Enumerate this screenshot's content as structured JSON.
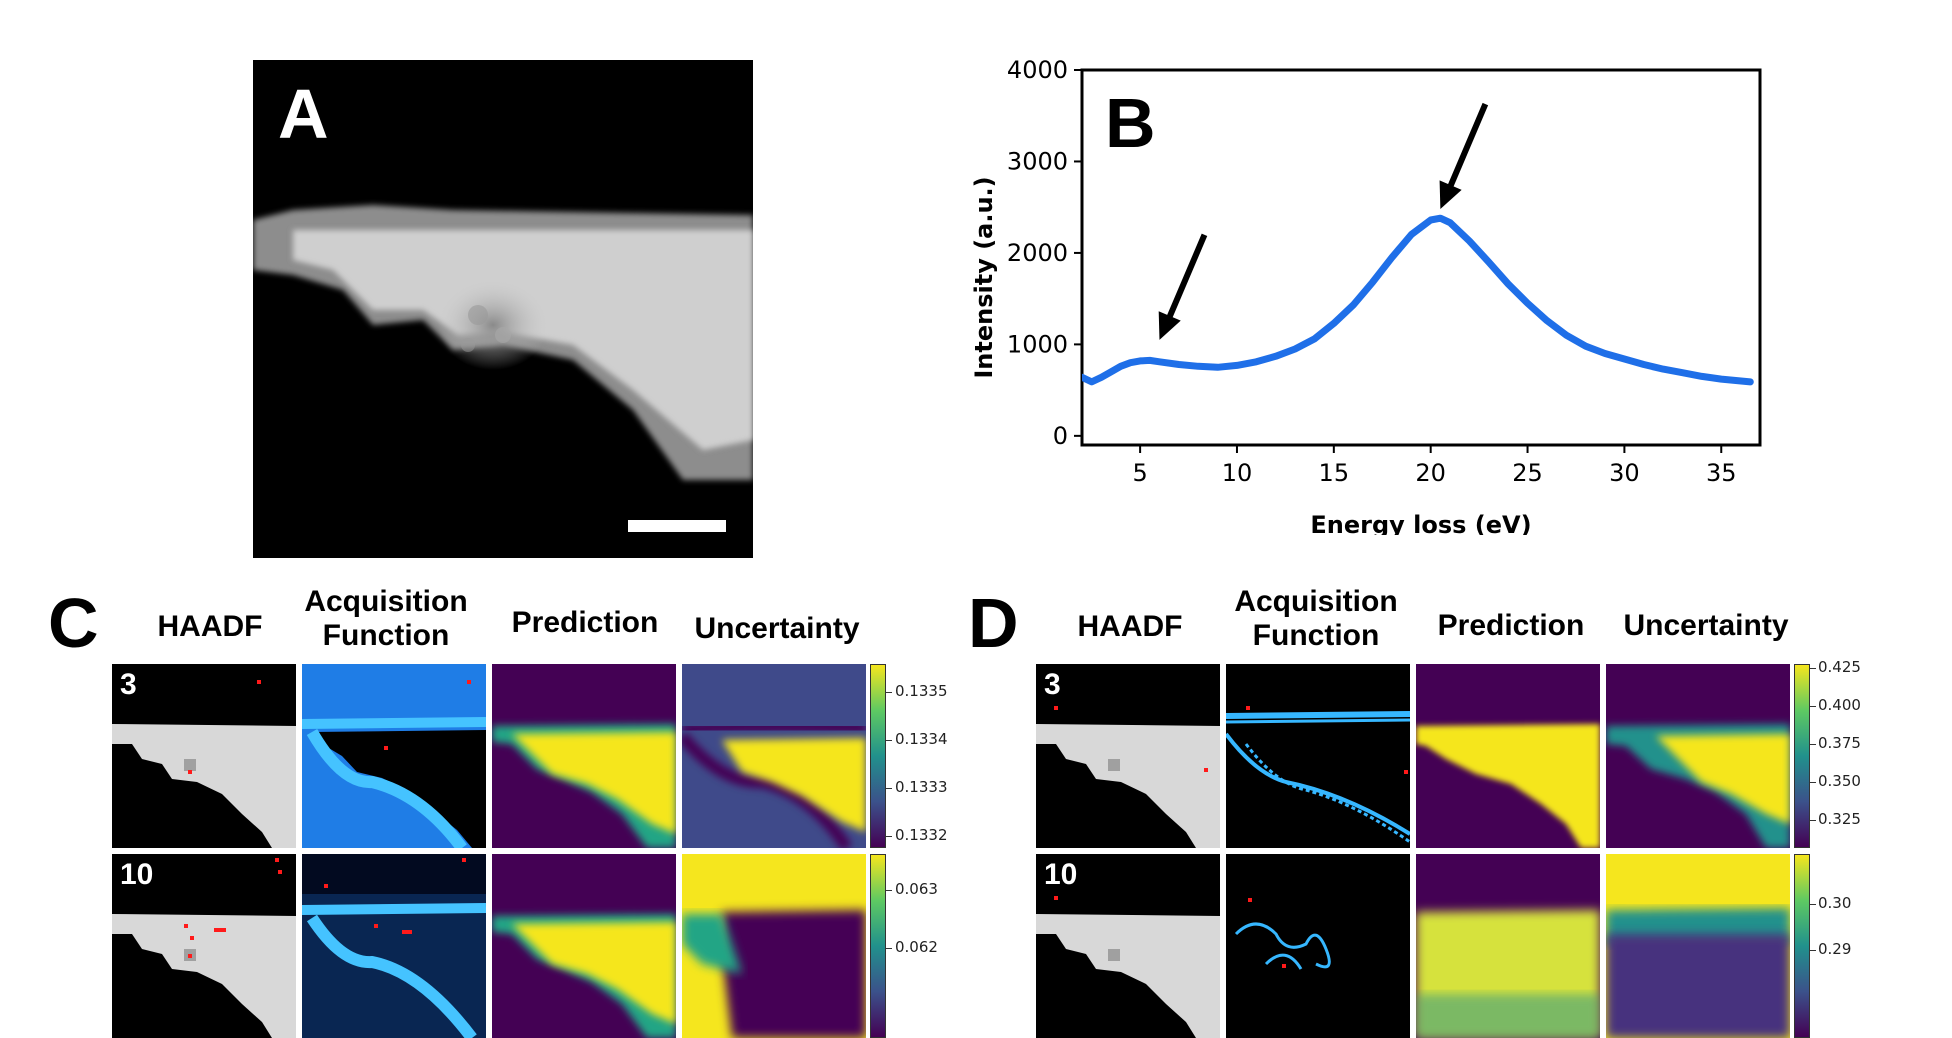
{
  "panel_a": {
    "letter": "A"
  },
  "panel_b": {
    "letter": "B"
  },
  "chart_data": {
    "type": "line",
    "title": "",
    "xlabel": "Energy loss (eV)",
    "ylabel": "Intensity (a.u.)",
    "xlim": [
      2,
      37
    ],
    "ylim": [
      -100,
      4000
    ],
    "xticks": [
      5,
      10,
      15,
      20,
      25,
      30,
      35
    ],
    "yticks": [
      0,
      1000,
      2000,
      3000,
      4000
    ],
    "grid": false,
    "series_color": "#1f6fe8",
    "x": [
      2,
      2.5,
      3,
      3.5,
      4,
      4.5,
      5,
      5.5,
      6,
      7,
      8,
      9,
      10,
      11,
      12,
      13,
      14,
      15,
      16,
      17,
      18,
      19,
      20,
      20.5,
      21,
      22,
      23,
      24,
      25,
      26,
      27,
      28,
      29,
      30,
      31,
      32,
      33,
      34,
      35,
      36.5
    ],
    "y": [
      640,
      590,
      640,
      700,
      760,
      800,
      820,
      825,
      810,
      780,
      760,
      750,
      770,
      810,
      870,
      950,
      1060,
      1230,
      1430,
      1680,
      1950,
      2200,
      2360,
      2380,
      2330,
      2130,
      1900,
      1660,
      1450,
      1260,
      1100,
      980,
      900,
      840,
      780,
      730,
      690,
      650,
      620,
      590
    ],
    "annotations": [
      {
        "type": "arrow",
        "x": 6,
        "y": 1050
      },
      {
        "type": "arrow",
        "x": 20.5,
        "y": 2480
      }
    ]
  },
  "panel_c": {
    "letter": "C",
    "headers": {
      "haadf": "HAADF",
      "acq_line1": "Acquisition",
      "acq_line2": "Function",
      "prediction": "Prediction",
      "uncertainty": "Uncertainty"
    },
    "rows": [
      {
        "label": "3",
        "colorbar_ticks": [
          "0.1335",
          "0.1334",
          "0.1333",
          "0.1332"
        ]
      },
      {
        "label": "10",
        "colorbar_ticks": [
          "0.063",
          "0.062"
        ]
      }
    ]
  },
  "panel_d": {
    "letter": "D",
    "headers": {
      "haadf": "HAADF",
      "acq_line1": "Acquisition",
      "acq_line2": "Function",
      "prediction": "Prediction",
      "uncertainty": "Uncertainty"
    },
    "rows": [
      {
        "label": "3",
        "colorbar_ticks": [
          "0.425",
          "0.400",
          "0.375",
          "0.350",
          "0.325"
        ]
      },
      {
        "label": "10",
        "colorbar_ticks": [
          "0.30",
          "0.29"
        ]
      }
    ]
  },
  "colors": {
    "viridis_dark": "#440154",
    "viridis_yellow": "#f5e61e",
    "acq_blue": "#2d8cf0",
    "acq_cyan": "#36b7ff",
    "sample_marker": "#ff1a1a"
  }
}
